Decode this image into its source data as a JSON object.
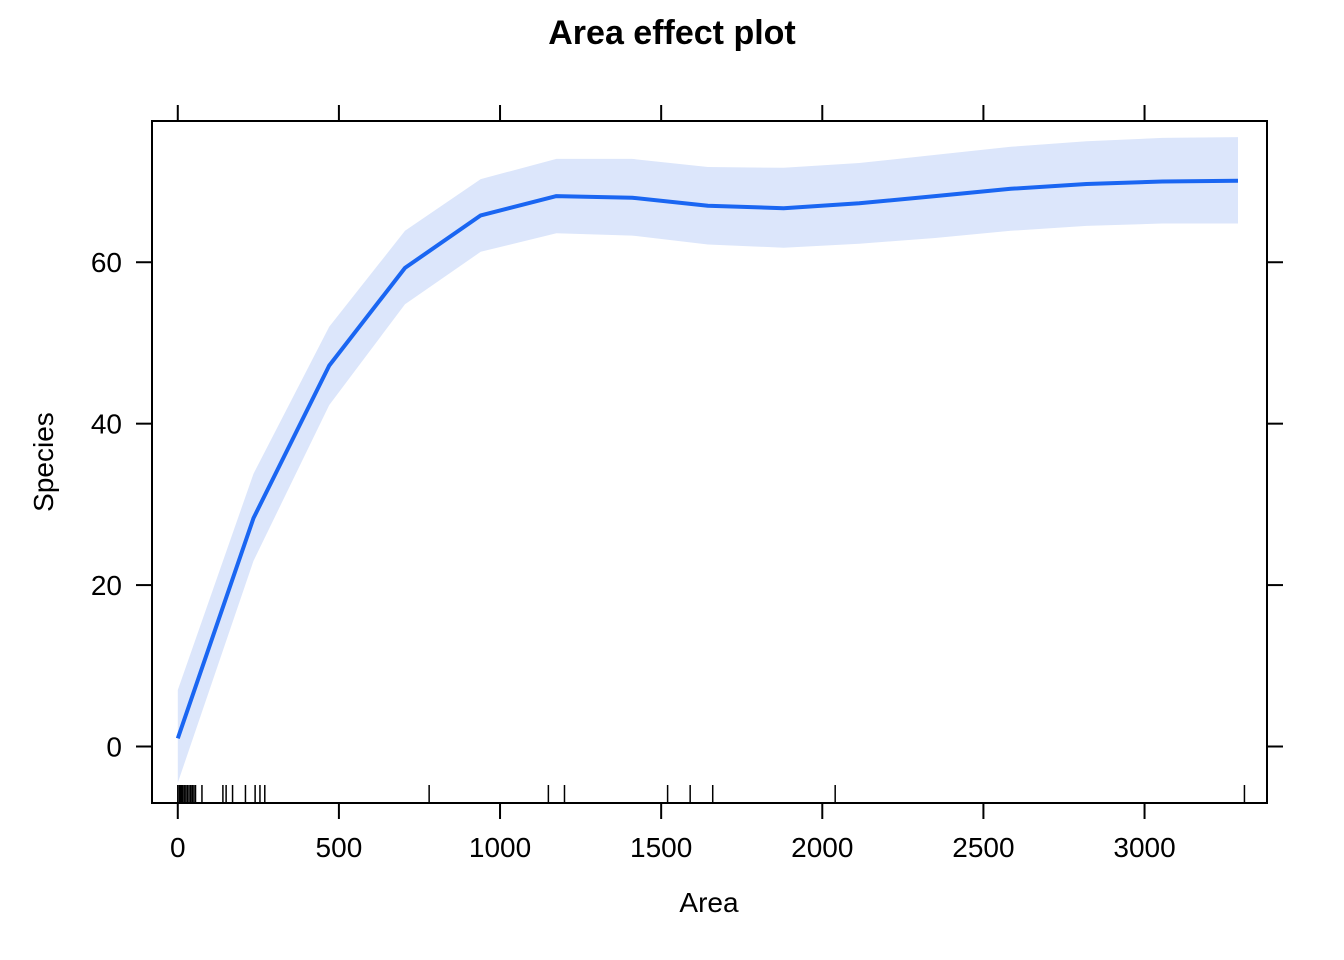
{
  "chart_data": {
    "type": "line",
    "title": "Area effect plot",
    "xlabel": "Area",
    "ylabel": "Species",
    "xlim": [
      -80,
      3380
    ],
    "ylim": [
      -7,
      77.5
    ],
    "x_ticks": [
      0,
      500,
      1000,
      1500,
      2000,
      2500,
      3000
    ],
    "x_tick_labels": [
      "0",
      "500",
      "1000",
      "1500",
      "2000",
      "2500",
      "3000"
    ],
    "y_ticks": [
      0,
      20,
      40,
      60
    ],
    "y_tick_labels": [
      "0",
      "20",
      "40",
      "60"
    ],
    "grid": false,
    "legend": "none",
    "series": [
      {
        "color": "#1a66f2",
        "band_color": "#dce6fb",
        "x": [
          0,
          235,
          470,
          705,
          940,
          1175,
          1410,
          1645,
          1880,
          2115,
          2350,
          2585,
          2820,
          3055,
          3290
        ],
        "y": [
          1,
          28.3,
          47.2,
          59.3,
          65.8,
          68.2,
          68.0,
          67.0,
          66.7,
          67.3,
          68.2,
          69.1,
          69.7,
          70.0,
          70.1
        ],
        "lower": [
          -4.5,
          23.0,
          42.3,
          54.8,
          61.3,
          63.6,
          63.3,
          62.2,
          61.8,
          62.3,
          63.0,
          63.9,
          64.5,
          64.8,
          64.8
        ],
        "upper": [
          7.0,
          33.8,
          52.0,
          63.9,
          70.3,
          72.8,
          72.8,
          71.8,
          71.7,
          72.3,
          73.3,
          74.3,
          75.0,
          75.4,
          75.5
        ]
      }
    ],
    "rug_x": [
      0,
      5,
      8,
      12,
      15,
      20,
      25,
      30,
      35,
      40,
      45,
      50,
      55,
      75,
      140,
      150,
      170,
      210,
      240,
      255,
      270,
      780,
      1150,
      1200,
      1520,
      1590,
      1660,
      2040,
      3310
    ]
  }
}
